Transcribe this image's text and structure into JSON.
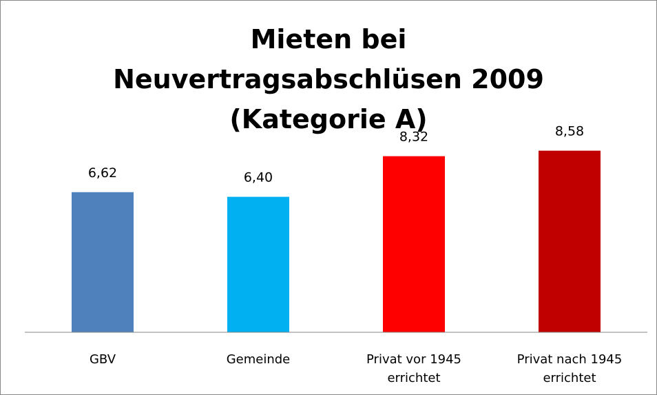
{
  "chart_data": {
    "type": "bar",
    "title": "Mieten bei Neuvertragsabschlüsen 2009 (Kategorie A)",
    "categories": [
      "GBV",
      "Gemeinde",
      "Privat vor 1945 errichtet",
      "Privat nach 1945 errichtet"
    ],
    "values": [
      6.62,
      6.4,
      8.32,
      8.58
    ],
    "value_labels": [
      "6,62",
      "6,40",
      "8,32",
      "8,58"
    ],
    "colors": [
      "#4f81bd",
      "#00b0f0",
      "#ff0000",
      "#c00000"
    ],
    "ylim": [
      0,
      10
    ]
  }
}
